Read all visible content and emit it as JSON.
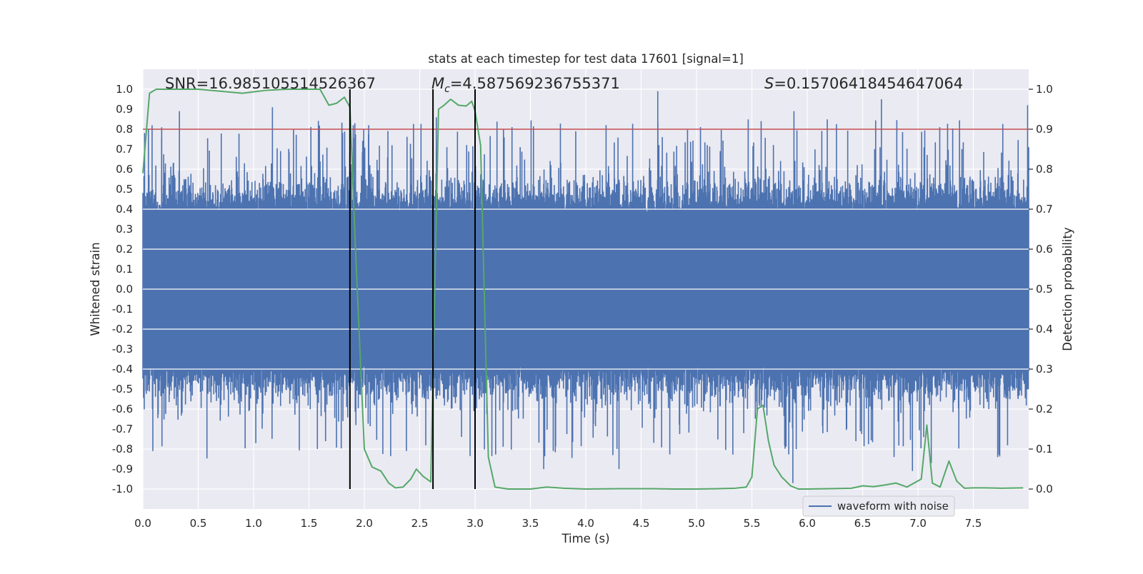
{
  "chart_data": {
    "type": "line",
    "title": "stats at each timestep for test data 17601 [signal=1]",
    "xlabel": "Time (s)",
    "ylabel_left": "Whitened strain",
    "ylabel_right": "Detection probability",
    "xlim": [
      0.0,
      8.0
    ],
    "ylim_left": [
      -1.1,
      1.1
    ],
    "ylim_right": [
      -0.05,
      1.05
    ],
    "x_ticks": [
      "0.0",
      "0.5",
      "1.0",
      "1.5",
      "2.0",
      "2.5",
      "3.0",
      "3.5",
      "4.0",
      "4.5",
      "5.0",
      "5.5",
      "6.0",
      "6.5",
      "7.0",
      "7.5"
    ],
    "y_left_ticks": [
      "1.0",
      "0.9",
      "0.8",
      "0.7",
      "0.6",
      "0.5",
      "0.4",
      "0.3",
      "0.2",
      "0.1",
      "0.0",
      "-0.1",
      "-0.2",
      "-0.3",
      "-0.4",
      "-0.5",
      "-0.6",
      "-0.7",
      "-0.8",
      "-0.9",
      "-1.0"
    ],
    "y_right_ticks": [
      "1.0",
      "0.9",
      "0.8",
      "0.7",
      "0.6",
      "0.5",
      "0.4",
      "0.3",
      "0.2",
      "0.1",
      "0.0"
    ],
    "grid": true,
    "legend_position": "lower right",
    "annotations": {
      "snr": "SNR=16.985105514526367",
      "mc_symbol": "M",
      "mc_sub": "c",
      "mc_value": "=4.587569236755371",
      "s_symbol": "S",
      "s_value": "=0.15706418454647064"
    },
    "threshold": {
      "value": 0.9,
      "axis": "right",
      "color": "#c44e52"
    },
    "vertical_lines": [
      1.87,
      2.62,
      3.0
    ],
    "series": [
      {
        "name": "waveform with noise",
        "axis": "left",
        "color": "#4c72b0",
        "kind": "noise",
        "typical_amplitude": 0.4,
        "max_amplitude": 1.0,
        "peaks": [
          {
            "x": 0.05,
            "y": 0.8
          },
          {
            "x": 0.17,
            "y": 0.81
          },
          {
            "x": 0.33,
            "y": 0.89
          },
          {
            "x": 1.17,
            "y": 0.91
          },
          {
            "x": 1.9,
            "y": 0.82
          },
          {
            "x": 2.04,
            "y": 0.82
          },
          {
            "x": 2.65,
            "y": 0.86
          },
          {
            "x": 4.65,
            "y": 0.99
          },
          {
            "x": 5.88,
            "y": 0.89
          },
          {
            "x": 6.67,
            "y": 0.95
          },
          {
            "x": 7.99,
            "y": 0.92
          },
          {
            "x": 0.09,
            "y": -0.81
          },
          {
            "x": 1.02,
            "y": -0.77
          },
          {
            "x": 2.38,
            "y": -0.81
          },
          {
            "x": 3.62,
            "y": -0.9
          },
          {
            "x": 4.3,
            "y": -0.9
          },
          {
            "x": 5.87,
            "y": -0.97
          },
          {
            "x": 6.95,
            "y": -0.91
          },
          {
            "x": 7.12,
            "y": -0.87
          },
          {
            "x": 7.72,
            "y": -0.84
          }
        ]
      },
      {
        "name": "",
        "axis": "right",
        "color": "#55a868",
        "x": [
          0.0,
          0.06,
          0.12,
          0.2,
          0.3,
          0.5,
          0.7,
          0.9,
          1.1,
          1.3,
          1.5,
          1.6,
          1.68,
          1.75,
          1.82,
          1.87,
          1.92,
          2.0,
          2.07,
          2.15,
          2.22,
          2.28,
          2.35,
          2.42,
          2.47,
          2.53,
          2.6,
          2.67,
          2.72,
          2.78,
          2.85,
          2.92,
          2.97,
          3.0,
          3.05,
          3.12,
          3.18,
          3.3,
          3.5,
          3.65,
          3.8,
          4.0,
          4.3,
          4.6,
          4.8,
          5.0,
          5.2,
          5.35,
          5.45,
          5.5,
          5.55,
          5.6,
          5.65,
          5.7,
          5.77,
          5.85,
          5.92,
          6.0,
          6.2,
          6.4,
          6.5,
          6.6,
          6.7,
          6.8,
          6.9,
          7.03,
          7.08,
          7.13,
          7.2,
          7.28,
          7.35,
          7.42,
          7.5,
          7.6,
          7.75,
          7.95
        ],
        "values": [
          0.79,
          0.99,
          1.0,
          1.0,
          1.0,
          1.0,
          0.995,
          0.99,
          0.997,
          1.0,
          1.0,
          1.0,
          0.96,
          0.965,
          0.98,
          0.955,
          0.6,
          0.1,
          0.055,
          0.045,
          0.015,
          0.003,
          0.005,
          0.025,
          0.05,
          0.032,
          0.018,
          0.95,
          0.96,
          0.975,
          0.96,
          0.958,
          0.97,
          0.945,
          0.86,
          0.08,
          0.005,
          0.0,
          0.0,
          0.005,
          0.002,
          0.0,
          0.001,
          0.001,
          0.0,
          0.0,
          0.001,
          0.002,
          0.005,
          0.03,
          0.2,
          0.21,
          0.12,
          0.06,
          0.03,
          0.008,
          0.0,
          0.0,
          0.001,
          0.002,
          0.008,
          0.006,
          0.01,
          0.015,
          0.005,
          0.025,
          0.16,
          0.015,
          0.005,
          0.07,
          0.02,
          0.002,
          0.003,
          0.003,
          0.002,
          0.003
        ]
      }
    ]
  }
}
